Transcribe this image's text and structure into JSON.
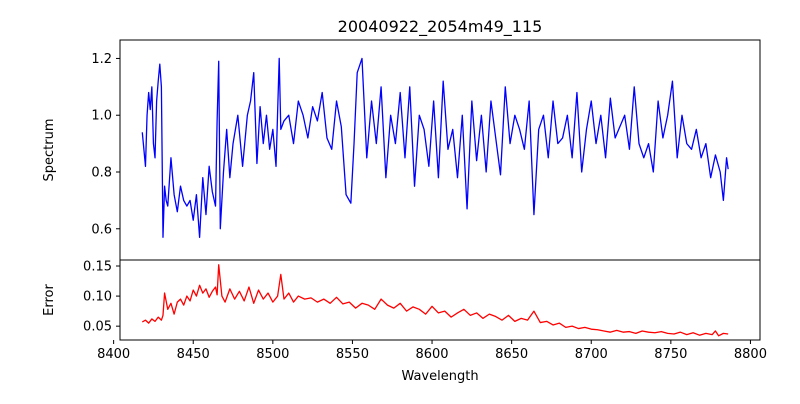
{
  "chart_data": [
    {
      "type": "line",
      "title": "20040922_2054m49_115",
      "xlabel": "",
      "ylabel": "Spectrum",
      "xlim": [
        8404,
        8806
      ],
      "ylim": [
        0.49,
        1.265
      ],
      "yticks": [
        0.6,
        0.8,
        1.0,
        1.2
      ],
      "ytick_labels": [
        "0.6",
        "0.8",
        "1.0",
        "1.2"
      ],
      "grid": false,
      "line_color": "#0000ff",
      "series": [
        {
          "x": [
            8418,
            8420,
            8421,
            8422,
            8423,
            8424,
            8425,
            8426,
            8427,
            8428,
            8429,
            8430,
            8431,
            8432,
            8433,
            8434,
            8436,
            8438,
            8440,
            8442,
            8444,
            8446,
            8448,
            8450,
            8452,
            8454,
            8456,
            8458,
            8460,
            8462,
            8464,
            8465,
            8466,
            8467,
            8469,
            8471,
            8473,
            8475,
            8478,
            8481,
            8484,
            8486,
            8488,
            8490,
            8492,
            8494,
            8496,
            8498,
            8500,
            8502,
            8504,
            8505,
            8507,
            8510,
            8513,
            8516,
            8519,
            8522,
            8525,
            8528,
            8531,
            8534,
            8537,
            8540,
            8543,
            8546,
            8549,
            8551,
            8553,
            8556,
            8559,
            8562,
            8565,
            8568,
            8571,
            8574,
            8577,
            8580,
            8583,
            8586,
            8589,
            8592,
            8595,
            8598,
            8601,
            8604,
            8607,
            8610,
            8613,
            8616,
            8619,
            8622,
            8625,
            8628,
            8631,
            8634,
            8637,
            8640,
            8643,
            8646,
            8649,
            8652,
            8655,
            8658,
            8661,
            8664,
            8667,
            8670,
            8673,
            8676,
            8679,
            8682,
            8685,
            8688,
            8691,
            8694,
            8697,
            8700,
            8703,
            8706,
            8709,
            8712,
            8715,
            8718,
            8721,
            8724,
            8727,
            8730,
            8733,
            8736,
            8739,
            8742,
            8745,
            8748,
            8751,
            8754,
            8757,
            8760,
            8763,
            8766,
            8769,
            8772,
            8775,
            8778,
            8781,
            8783,
            8785,
            8786
          ],
          "values": [
            0.94,
            0.82,
            1.0,
            1.08,
            1.02,
            1.1,
            0.9,
            0.85,
            1.05,
            1.12,
            1.18,
            1.1,
            0.57,
            0.75,
            0.7,
            0.68,
            0.85,
            0.72,
            0.66,
            0.75,
            0.7,
            0.68,
            0.7,
            0.63,
            0.72,
            0.57,
            0.78,
            0.65,
            0.82,
            0.73,
            0.68,
            0.98,
            1.19,
            0.6,
            0.8,
            0.95,
            0.78,
            0.9,
            1.0,
            0.82,
            1.0,
            1.05,
            1.15,
            0.83,
            1.03,
            0.9,
            1.0,
            0.88,
            0.95,
            0.82,
            1.2,
            0.95,
            0.98,
            1.0,
            0.9,
            1.05,
            1.0,
            0.92,
            1.03,
            0.98,
            1.08,
            0.92,
            0.88,
            1.05,
            0.96,
            0.72,
            0.69,
            0.9,
            1.15,
            1.2,
            0.85,
            1.05,
            0.9,
            1.1,
            0.78,
            1.0,
            0.9,
            1.08,
            0.85,
            1.1,
            0.75,
            1.0,
            0.95,
            0.82,
            1.05,
            0.78,
            1.12,
            0.88,
            0.95,
            0.78,
            1.0,
            0.67,
            1.05,
            0.84,
            1.0,
            0.8,
            1.05,
            0.92,
            0.79,
            1.1,
            0.9,
            1.0,
            0.95,
            0.88,
            1.05,
            0.65,
            0.95,
            1.0,
            0.85,
            1.05,
            0.9,
            0.92,
            1.0,
            0.85,
            1.08,
            0.8,
            0.95,
            1.05,
            0.9,
            1.0,
            0.85,
            1.06,
            0.92,
            0.96,
            1.0,
            0.88,
            1.1,
            0.9,
            0.85,
            0.9,
            0.8,
            1.05,
            0.92,
            1.0,
            1.12,
            0.85,
            1.0,
            0.9,
            0.88,
            0.95,
            0.85,
            0.9,
            0.78,
            0.86,
            0.8,
            0.7,
            0.85,
            0.81
          ]
        }
      ]
    },
    {
      "type": "line",
      "title": "",
      "xlabel": "Wavelength",
      "ylabel": "Error",
      "xlim": [
        8404,
        8806
      ],
      "ylim": [
        0.027,
        0.16
      ],
      "yticks": [
        0.05,
        0.1,
        0.15
      ],
      "ytick_labels": [
        "0.05",
        "0.10",
        "0.15"
      ],
      "xticks": [
        8400,
        8450,
        8500,
        8550,
        8600,
        8650,
        8700,
        8750,
        8800
      ],
      "xtick_labels": [
        "8400",
        "8450",
        "8500",
        "8550",
        "8600",
        "8650",
        "8700",
        "8750",
        "8800"
      ],
      "grid": false,
      "line_color": "#ff0000",
      "series": [
        {
          "x": [
            8418,
            8420,
            8422,
            8424,
            8426,
            8428,
            8430,
            8431,
            8432,
            8434,
            8436,
            8438,
            8440,
            8442,
            8444,
            8446,
            8448,
            8450,
            8452,
            8454,
            8456,
            8458,
            8460,
            8462,
            8464,
            8465,
            8466,
            8468,
            8470,
            8473,
            8476,
            8479,
            8482,
            8485,
            8488,
            8491,
            8494,
            8497,
            8500,
            8503,
            8505,
            8507,
            8510,
            8513,
            8516,
            8520,
            8524,
            8528,
            8532,
            8536,
            8540,
            8544,
            8548,
            8552,
            8556,
            8560,
            8564,
            8568,
            8572,
            8576,
            8580,
            8584,
            8588,
            8592,
            8596,
            8600,
            8604,
            8608,
            8612,
            8616,
            8620,
            8624,
            8628,
            8632,
            8636,
            8640,
            8644,
            8648,
            8652,
            8656,
            8660,
            8664,
            8668,
            8672,
            8676,
            8680,
            8684,
            8688,
            8692,
            8696,
            8700,
            8704,
            8708,
            8712,
            8716,
            8720,
            8724,
            8728,
            8732,
            8736,
            8740,
            8744,
            8748,
            8752,
            8756,
            8760,
            8764,
            8768,
            8772,
            8776,
            8778,
            8780,
            8783,
            8786
          ],
          "values": [
            0.057,
            0.06,
            0.055,
            0.062,
            0.058,
            0.065,
            0.06,
            0.068,
            0.105,
            0.078,
            0.088,
            0.07,
            0.09,
            0.095,
            0.085,
            0.1,
            0.092,
            0.11,
            0.1,
            0.118,
            0.105,
            0.112,
            0.098,
            0.108,
            0.115,
            0.102,
            0.152,
            0.1,
            0.09,
            0.112,
            0.095,
            0.108,
            0.092,
            0.115,
            0.088,
            0.11,
            0.095,
            0.105,
            0.09,
            0.1,
            0.136,
            0.095,
            0.105,
            0.09,
            0.1,
            0.095,
            0.097,
            0.09,
            0.095,
            0.088,
            0.098,
            0.087,
            0.09,
            0.08,
            0.088,
            0.085,
            0.078,
            0.095,
            0.085,
            0.08,
            0.088,
            0.075,
            0.082,
            0.078,
            0.07,
            0.083,
            0.072,
            0.075,
            0.065,
            0.072,
            0.078,
            0.068,
            0.072,
            0.063,
            0.07,
            0.066,
            0.06,
            0.068,
            0.058,
            0.063,
            0.06,
            0.075,
            0.056,
            0.058,
            0.052,
            0.055,
            0.048,
            0.05,
            0.046,
            0.048,
            0.045,
            0.044,
            0.042,
            0.04,
            0.043,
            0.04,
            0.041,
            0.038,
            0.042,
            0.04,
            0.039,
            0.041,
            0.038,
            0.037,
            0.04,
            0.036,
            0.039,
            0.035,
            0.038,
            0.036,
            0.042,
            0.034,
            0.038,
            0.037
          ]
        }
      ]
    }
  ]
}
